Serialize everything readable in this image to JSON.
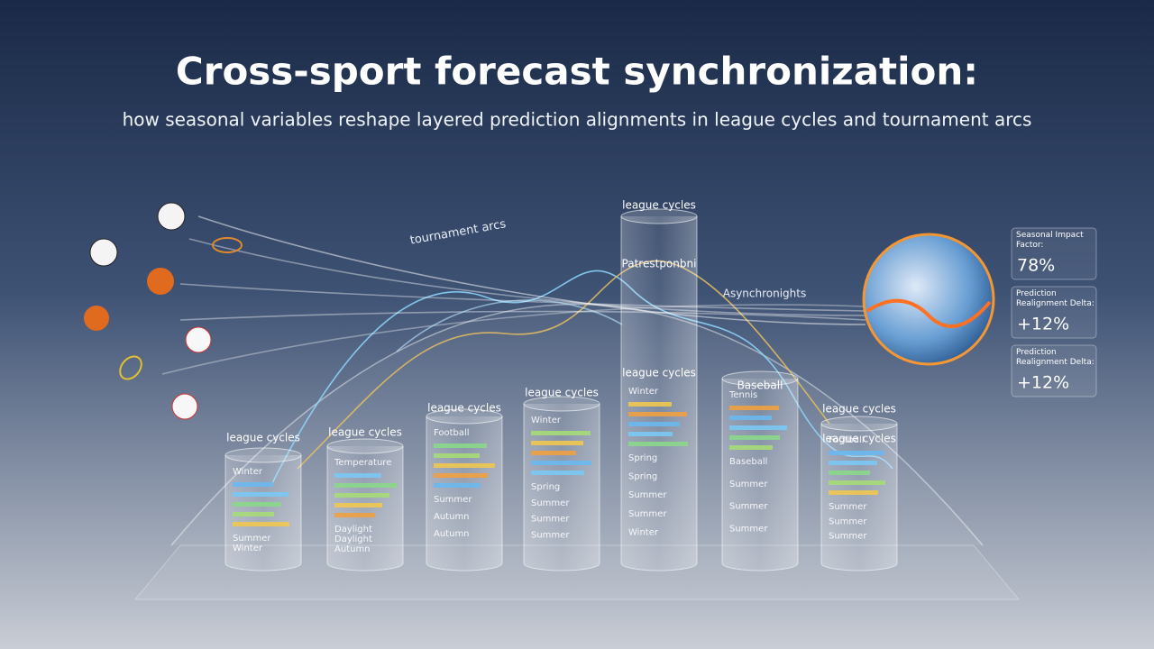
{
  "header": {
    "title": "Cross-sport forecast synchronization:",
    "subtitle": "how seasonal variables reshape layered prediction alignments in league cycles and tournament arcs"
  },
  "arc_label": "tournament arcs",
  "side_label": "Asynchronights",
  "cylinders": [
    {
      "labels": [
        "league cycles"
      ],
      "items": [
        "Winter",
        "Summer",
        "Winter"
      ]
    },
    {
      "labels": [
        "league cycles"
      ],
      "items": [
        "Temperature",
        "Daylight",
        "Daylight",
        "Autumn"
      ]
    },
    {
      "labels": [
        "league cycles"
      ],
      "items": [
        "Football",
        "Summer",
        "Autumn",
        "Autumn"
      ]
    },
    {
      "labels": [
        "league cycles"
      ],
      "items": [
        "Winter",
        "Spring",
        "Summer",
        "Summer",
        "Summer"
      ]
    },
    {
      "labels": [
        "league cycles",
        "Patrestponbni",
        "league cycles"
      ],
      "items": [
        "Winter",
        "Spring",
        "Spring",
        "Summer",
        "Summer",
        "Winter"
      ]
    },
    {
      "labels": [
        "Baseball"
      ],
      "items": [
        "Tennis",
        "Baseball",
        "Summer",
        "Summer",
        "Summer"
      ]
    },
    {
      "labels": [
        "league cycles",
        "league cycles"
      ],
      "items": [
        "Football",
        "Summer",
        "Summer",
        "Summer"
      ]
    }
  ],
  "cards": [
    {
      "label": "Seasonal Impact Factor:",
      "value": "78%"
    },
    {
      "label": "Prediction Realignment Delta:",
      "value": "+12%"
    },
    {
      "label": "Prediction Realignment Delta:",
      "value": "+12%"
    }
  ]
}
